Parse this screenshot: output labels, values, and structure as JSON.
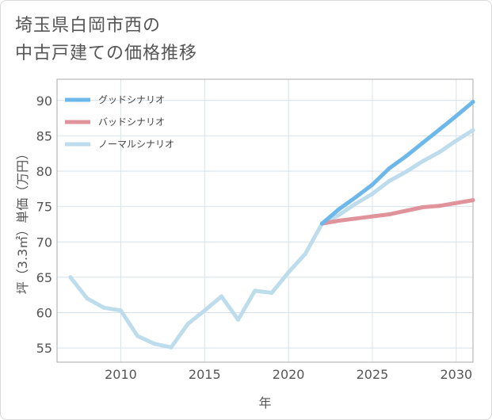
{
  "title_line1": "埼玉県白岡市西の",
  "title_line2": "中古戸建ての価格推移",
  "chart_data": {
    "type": "line",
    "xlabel": "年",
    "ylabel": "坪（3.3㎡）単価（万円）",
    "xlim": [
      2006.2,
      2031
    ],
    "ylim": [
      53,
      93
    ],
    "xticks": [
      2010,
      2015,
      2020,
      2025,
      2030
    ],
    "yticks": [
      55,
      60,
      65,
      70,
      75,
      80,
      85,
      90
    ],
    "grid": true,
    "legend_position": "top-left",
    "series": [
      {
        "name": "グッドシナリオ",
        "color": "#6cb8ea",
        "x": [
          2022,
          2023,
          2024,
          2025,
          2026,
          2027,
          2028,
          2029,
          2030,
          2031
        ],
        "values": [
          72.6,
          74.6,
          76.3,
          78.1,
          80.4,
          82.1,
          84.0,
          85.9,
          87.8,
          89.8
        ]
      },
      {
        "name": "バッドシナリオ",
        "color": "#e0939a",
        "x": [
          2022,
          2023,
          2024,
          2025,
          2026,
          2027,
          2028,
          2029,
          2030,
          2031
        ],
        "values": [
          72.6,
          73.0,
          73.3,
          73.6,
          73.9,
          74.4,
          74.9,
          75.1,
          75.5,
          75.9
        ]
      },
      {
        "name": "ノーマルシナリオ",
        "color": "#bddcec",
        "x": [
          2007,
          2008,
          2009,
          2010,
          2011,
          2012,
          2013,
          2014,
          2015,
          2016,
          2017,
          2018,
          2019,
          2020,
          2021,
          2022,
          2023,
          2024,
          2025,
          2026,
          2027,
          2028,
          2029,
          2030,
          2031
        ],
        "values": [
          65.0,
          62.0,
          60.7,
          60.3,
          56.7,
          55.6,
          55.1,
          58.4,
          60.3,
          62.3,
          59.0,
          63.1,
          62.8,
          65.7,
          68.3,
          72.6,
          73.8,
          75.4,
          76.8,
          78.6,
          79.9,
          81.4,
          82.7,
          84.3,
          85.8
        ]
      }
    ]
  }
}
